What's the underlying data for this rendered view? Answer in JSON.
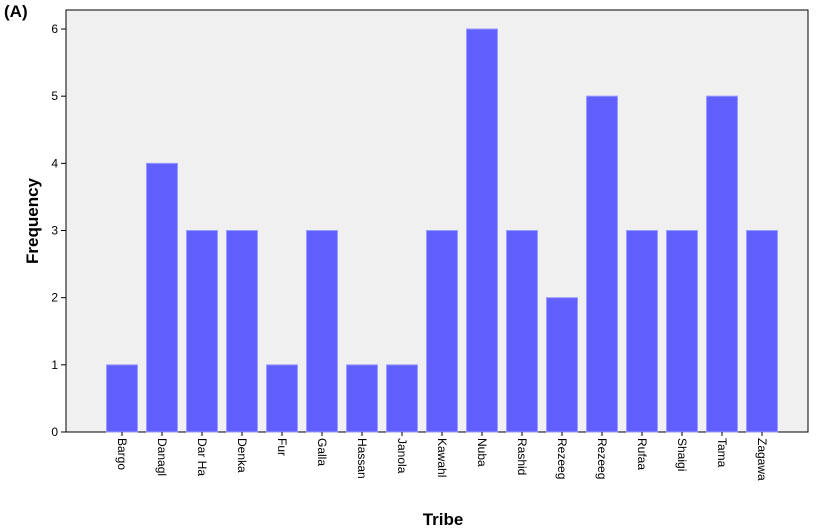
{
  "panel_label": "(A)",
  "chart_data": {
    "type": "bar",
    "categories": [
      "Bargo",
      "Danagl",
      "Dar Ha",
      "Denka",
      "Fur",
      "Galla",
      "Hassan",
      "Janola",
      "Kawahl",
      "Nuba",
      "Rashid",
      "Rezeeg",
      "Rezeeg",
      "Rufaa",
      "Shaigi",
      "Tama",
      "Zagawa"
    ],
    "values": [
      1,
      4,
      3,
      3,
      1,
      3,
      1,
      1,
      3,
      6,
      3,
      2,
      5,
      3,
      3,
      5,
      3
    ],
    "xlabel": "Tribe",
    "ylabel": "Frequency",
    "ylim": [
      0,
      6
    ],
    "yticks": [
      "0",
      "1",
      "2",
      "3",
      "4",
      "5",
      "6"
    ],
    "grid": false,
    "colors": {
      "bar": "#6060ff",
      "bar_edge": "#9a9aff",
      "plot_bg": "#f0f0f0",
      "axis": "#000000"
    }
  }
}
